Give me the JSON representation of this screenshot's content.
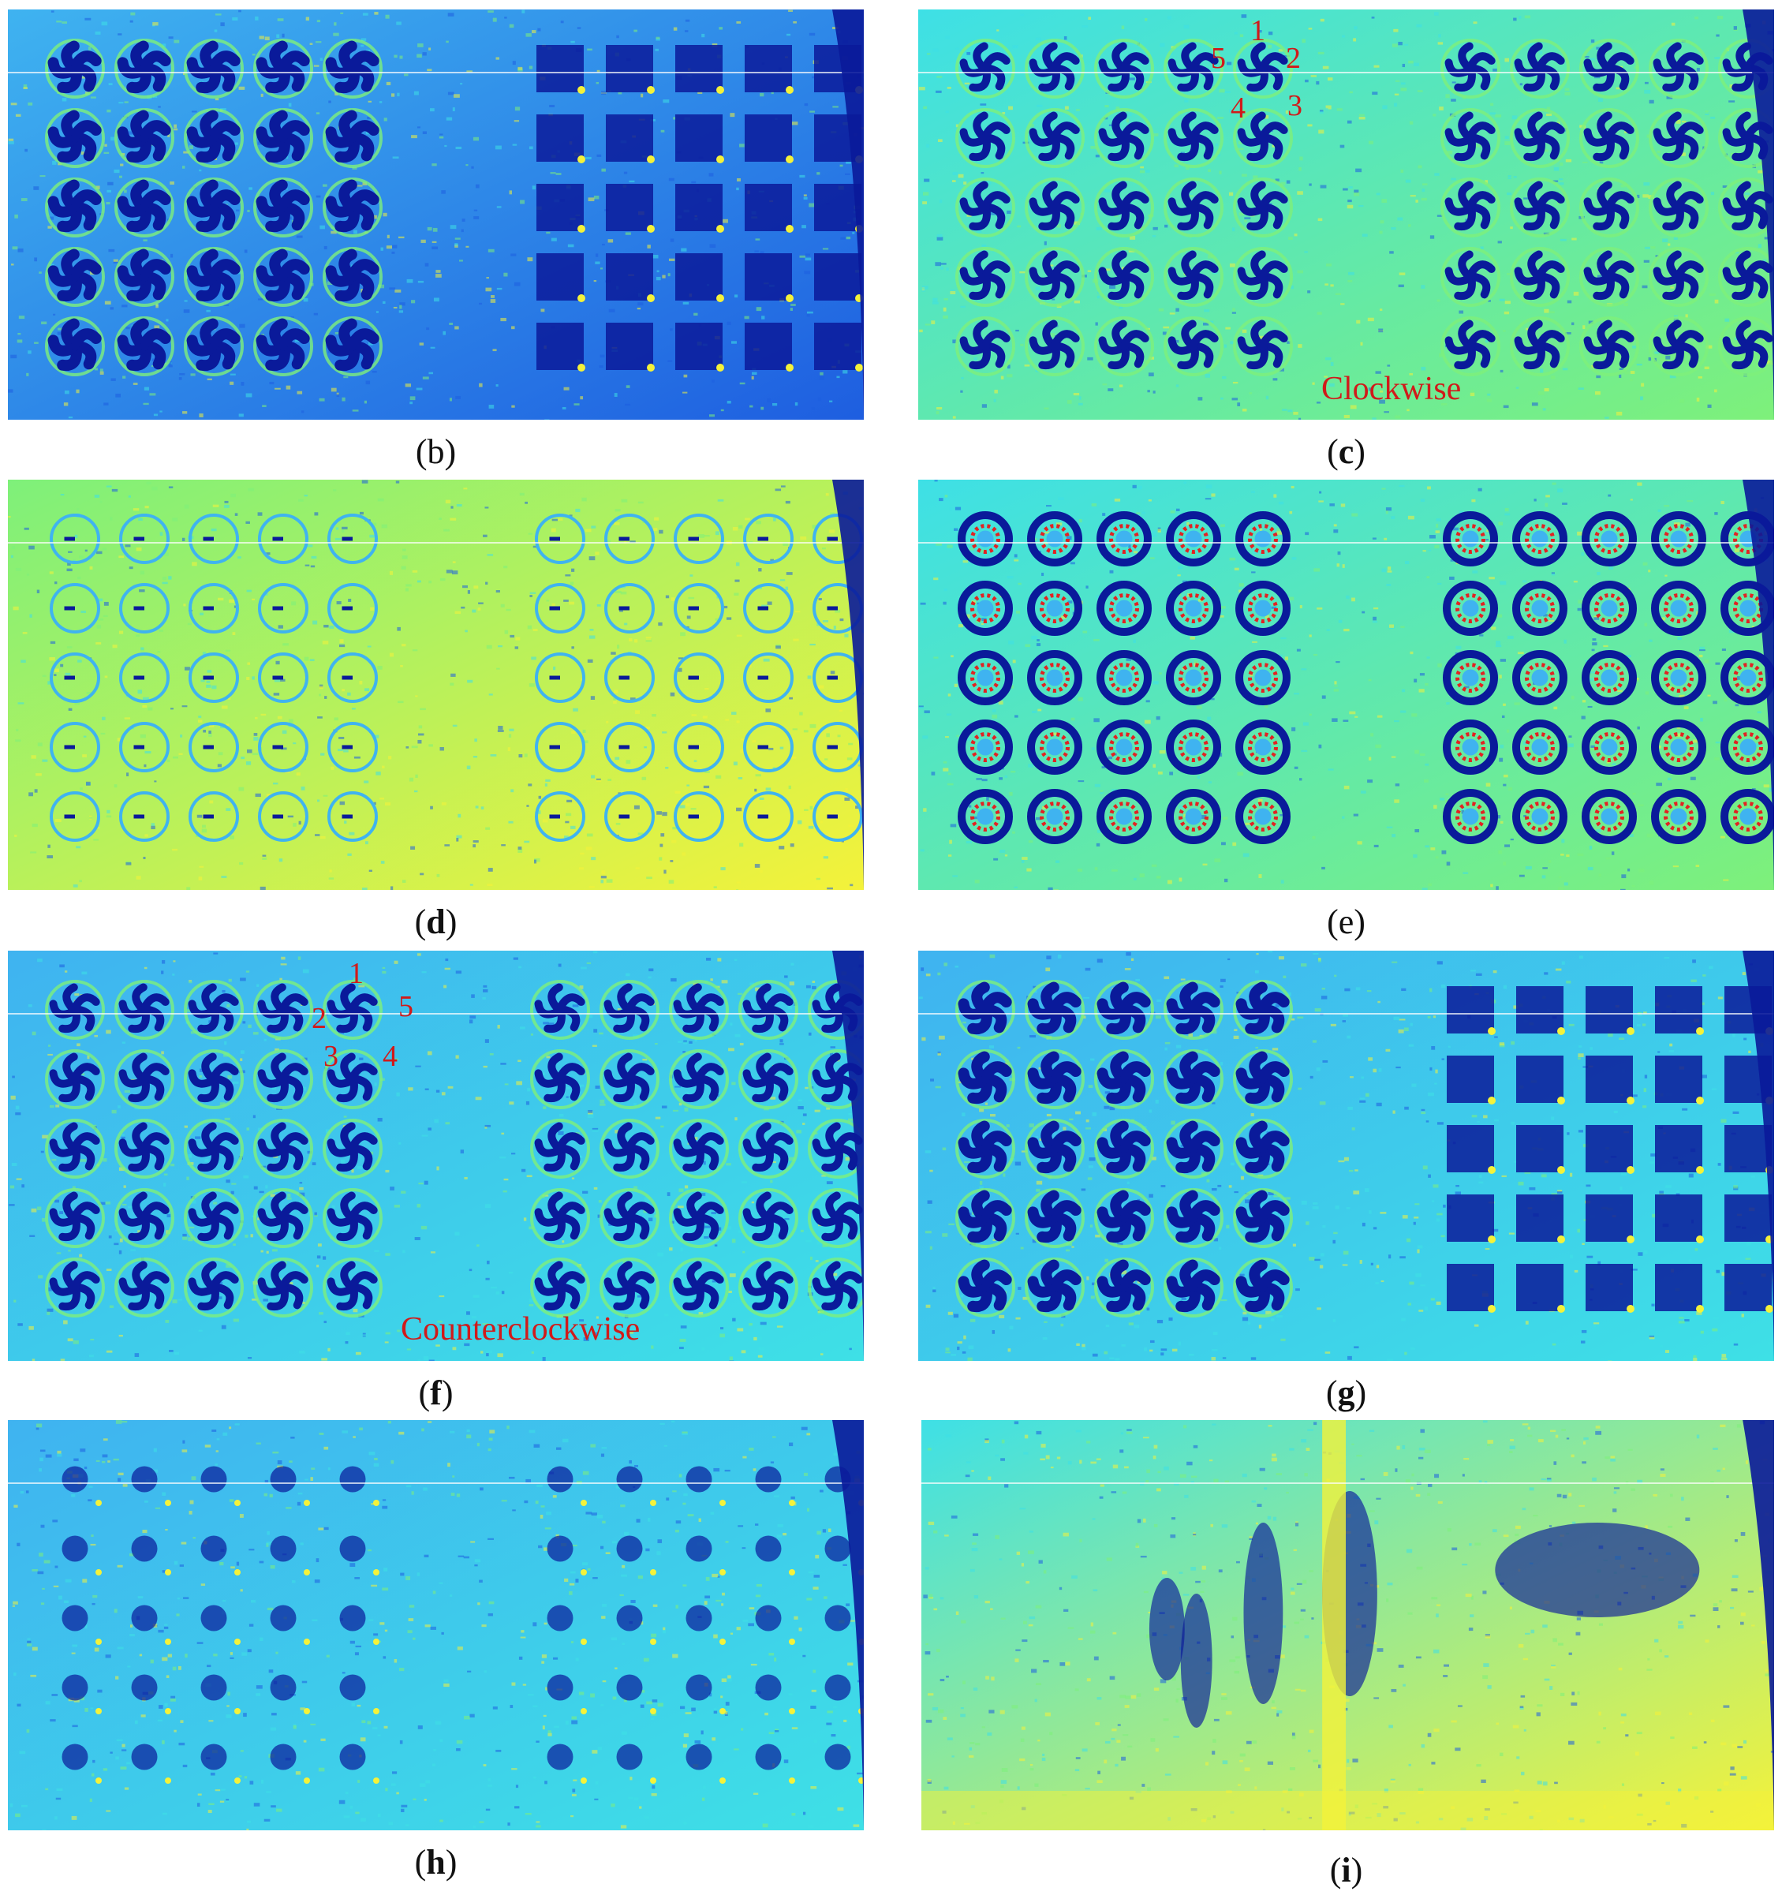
{
  "panels": [
    {
      "id": "b",
      "caption_letter": "b",
      "bold": false,
      "theme": "dark-blue",
      "left_grid_style": "swirl-dense",
      "right_grid_style": "dense"
    },
    {
      "id": "c",
      "caption_letter": "c",
      "bold": true,
      "theme": "green",
      "left_grid_style": "swirl",
      "right_grid_style": "swirl"
    },
    {
      "id": "d",
      "caption_letter": "d",
      "bold": true,
      "theme": "yellow",
      "left_grid_style": "ring-faint",
      "right_grid_style": "ring-faint"
    },
    {
      "id": "e",
      "caption_letter": "e",
      "bold": false,
      "theme": "green",
      "left_grid_style": "ring",
      "right_grid_style": "ring"
    },
    {
      "id": "f",
      "caption_letter": "f",
      "bold": true,
      "theme": "light-blue",
      "left_grid_style": "swirl",
      "right_grid_style": "swirl"
    },
    {
      "id": "g",
      "caption_letter": "g",
      "bold": true,
      "theme": "light-blue",
      "left_grid_style": "swirl-dense",
      "right_grid_style": "dense"
    },
    {
      "id": "h",
      "caption_letter": "h",
      "bold": true,
      "theme": "mixed",
      "left_grid_style": "blob",
      "right_grid_style": "blob"
    },
    {
      "id": "i",
      "caption_letter": "i",
      "bold": true,
      "theme": "mixed-yellow",
      "left_grid_style": "smear",
      "right_grid_style": "smear"
    }
  ],
  "annotations": {
    "c": {
      "word": "Clockwise",
      "numbers": [
        "1",
        "2",
        "3",
        "4",
        "5"
      ]
    },
    "f": {
      "word": "Counterclockwise",
      "numbers": [
        "1",
        "2",
        "3",
        "4",
        "5"
      ]
    }
  },
  "colors": {
    "dark_blue": "#0a1a9a",
    "mid_blue": "#1e5ee0",
    "light_blue": "#3fb3f0",
    "cyan": "#3ee0e6",
    "green": "#7ef07a",
    "yellow": "#f4f23a",
    "red": "#e22222",
    "label_red": "#d11a1a"
  }
}
